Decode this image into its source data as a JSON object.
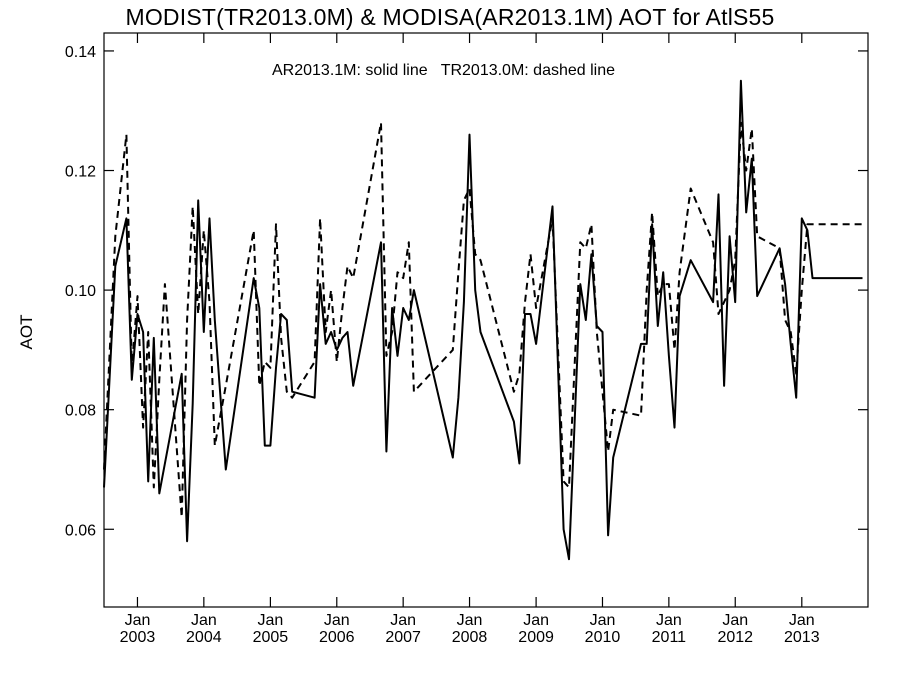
{
  "chart_data": {
    "type": "line",
    "title": "MODIST(TR2013.0M) & MODISA(AR2013.1M)  AOT for AtlS55",
    "annotation": "AR2013.1M: solid line   TR2013.0M: dashed line",
    "xlabel": "",
    "ylabel": "AOT",
    "xlim": [
      "2002-07-01",
      "2013-12-31"
    ],
    "ylim": [
      0.047,
      0.143
    ],
    "y_ticks": [
      0.06,
      0.08,
      0.1,
      0.12,
      0.14
    ],
    "y_tick_labels": [
      "0.06",
      "0.08",
      "0.10",
      "0.12",
      "0.14"
    ],
    "x_ticks": [
      {
        "top": "Jan",
        "bottom": "2003"
      },
      {
        "top": "Jan",
        "bottom": "2004"
      },
      {
        "top": "Jan",
        "bottom": "2005"
      },
      {
        "top": "Jan",
        "bottom": "2006"
      },
      {
        "top": "Jan",
        "bottom": "2007"
      },
      {
        "top": "Jan",
        "bottom": "2008"
      },
      {
        "top": "Jan",
        "bottom": "2009"
      },
      {
        "top": "Jan",
        "bottom": "2010"
      },
      {
        "top": "Jan",
        "bottom": "2011"
      },
      {
        "top": "Jan",
        "bottom": "2012"
      },
      {
        "top": "Jan",
        "bottom": "2013"
      }
    ],
    "x_tick_dates": [
      "2003-01-01",
      "2004-01-01",
      "2005-01-01",
      "2006-01-01",
      "2007-01-01",
      "2008-01-01",
      "2009-01-01",
      "2010-01-01",
      "2011-01-01",
      "2012-01-01",
      "2013-01-01"
    ],
    "grid": false,
    "series": [
      {
        "name": "AR2013.1M",
        "line_style": "solid",
        "color": "#000000",
        "x": [
          "2002-07",
          "2002-09",
          "2002-11",
          "2002-12",
          "2003-01",
          "2003-02",
          "2003-03",
          "2003-04",
          "2003-05",
          "2003-06",
          "2003-09",
          "2003-10",
          "2003-11",
          "2003-12",
          "2004-01",
          "2004-02",
          "2004-03",
          "2004-05",
          "2004-10",
          "2004-11",
          "2004-12",
          "2005-01",
          "2005-02",
          "2005-03",
          "2005-04",
          "2005-05",
          "2005-09",
          "2005-10",
          "2005-11",
          "2005-12",
          "2006-01",
          "2006-02",
          "2006-03",
          "2006-04",
          "2006-09",
          "2006-10",
          "2006-11",
          "2006-12",
          "2007-01",
          "2007-02",
          "2007-03",
          "2007-10",
          "2007-11",
          "2007-12",
          "2008-01",
          "2008-02",
          "2008-03",
          "2008-09",
          "2008-10",
          "2008-11",
          "2008-12",
          "2009-01",
          "2009-04",
          "2009-06",
          "2009-07",
          "2009-09",
          "2009-10",
          "2009-11",
          "2009-12",
          "2010-01",
          "2010-02",
          "2010-03",
          "2010-08",
          "2010-09",
          "2010-10",
          "2010-11",
          "2010-12",
          "2011-01",
          "2011-02",
          "2011-03",
          "2011-05",
          "2011-09",
          "2011-10",
          "2011-11",
          "2011-12",
          "2012-01",
          "2012-02",
          "2012-03",
          "2012-04",
          "2012-05",
          "2012-09",
          "2012-10",
          "2012-11",
          "2012-12",
          "2013-01",
          "2013-02",
          "2013-03",
          "2013-04",
          "2013-08",
          "2013-09",
          "2013-10",
          "2013-11",
          "2013-12"
        ],
        "y": [
          0.067,
          0.104,
          0.112,
          0.085,
          0.096,
          0.093,
          0.068,
          0.092,
          0.066,
          0.071,
          0.086,
          0.058,
          0.081,
          0.115,
          0.093,
          0.112,
          0.095,
          0.07,
          0.102,
          0.097,
          0.074,
          0.074,
          0.087,
          0.096,
          0.095,
          0.083,
          0.082,
          0.101,
          0.091,
          0.093,
          0.09,
          0.092,
          0.093,
          0.084,
          0.108,
          0.073,
          0.097,
          0.089,
          0.097,
          0.095,
          0.1,
          0.072,
          0.082,
          0.098,
          0.126,
          0.1,
          0.093,
          0.078,
          0.071,
          0.096,
          0.096,
          0.091,
          0.114,
          0.06,
          0.055,
          0.101,
          0.095,
          0.106,
          0.094,
          0.093,
          0.059,
          0.072,
          0.091,
          0.091,
          0.111,
          0.094,
          0.103,
          0.089,
          0.077,
          0.099,
          0.105,
          0.098,
          0.116,
          0.084,
          0.109,
          0.098,
          0.135,
          0.113,
          0.122,
          0.099,
          0.107,
          0.101,
          0.091,
          0.082,
          0.112,
          0.11,
          0.102,
          0.102,
          0.102,
          0.102,
          0.102,
          0.102,
          0.102
        ]
      },
      {
        "name": "TR2013.0M",
        "line_style": "dashed",
        "color": "#000000",
        "x": [
          "2002-07",
          "2002-09",
          "2002-11",
          "2002-12",
          "2003-01",
          "2003-02",
          "2003-03",
          "2003-04",
          "2003-05",
          "2003-06",
          "2003-09",
          "2003-10",
          "2003-11",
          "2003-12",
          "2004-01",
          "2004-02",
          "2004-03",
          "2004-05",
          "2004-10",
          "2004-11",
          "2004-12",
          "2005-01",
          "2005-02",
          "2005-03",
          "2005-04",
          "2005-05",
          "2005-09",
          "2005-10",
          "2005-11",
          "2005-12",
          "2006-01",
          "2006-02",
          "2006-03",
          "2006-04",
          "2006-09",
          "2006-10",
          "2006-11",
          "2006-12",
          "2007-01",
          "2007-02",
          "2007-03",
          "2007-10",
          "2007-11",
          "2007-12",
          "2008-01",
          "2008-02",
          "2008-03",
          "2008-09",
          "2008-10",
          "2008-11",
          "2008-12",
          "2009-01",
          "2009-04",
          "2009-06",
          "2009-07",
          "2009-09",
          "2009-10",
          "2009-11",
          "2009-12",
          "2010-01",
          "2010-02",
          "2010-03",
          "2010-08",
          "2010-09",
          "2010-10",
          "2010-11",
          "2010-12",
          "2011-01",
          "2011-02",
          "2011-03",
          "2011-05",
          "2011-09",
          "2011-10",
          "2011-11",
          "2011-12",
          "2012-01",
          "2012-02",
          "2012-03",
          "2012-04",
          "2012-05",
          "2012-09",
          "2012-10",
          "2012-11",
          "2012-12",
          "2013-01",
          "2013-02",
          "2013-03",
          "2013-04",
          "2013-08",
          "2013-09",
          "2013-10",
          "2013-11",
          "2013-12"
        ],
        "y": [
          0.07,
          0.109,
          0.126,
          0.087,
          0.099,
          0.077,
          0.093,
          0.067,
          0.085,
          0.101,
          0.062,
          0.095,
          0.114,
          0.096,
          0.11,
          0.098,
          0.074,
          0.084,
          0.11,
          0.084,
          0.088,
          0.087,
          0.111,
          0.092,
          0.083,
          0.082,
          0.088,
          0.112,
          0.093,
          0.1,
          0.088,
          0.097,
          0.104,
          0.102,
          0.128,
          0.089,
          0.093,
          0.103,
          0.102,
          0.108,
          0.083,
          0.09,
          0.103,
          0.115,
          0.117,
          0.106,
          0.105,
          0.083,
          0.086,
          0.098,
          0.106,
          0.097,
          0.112,
          0.068,
          0.067,
          0.108,
          0.107,
          0.111,
          0.093,
          0.083,
          0.073,
          0.08,
          0.079,
          0.1,
          0.113,
          0.099,
          0.101,
          0.101,
          0.09,
          0.103,
          0.117,
          0.108,
          0.096,
          0.098,
          0.1,
          0.105,
          0.128,
          0.12,
          0.127,
          0.109,
          0.107,
          0.095,
          0.093,
          0.086,
          0.1,
          0.111,
          0.111,
          0.111,
          0.111,
          0.111,
          0.111,
          0.111,
          0.111
        ]
      }
    ]
  }
}
